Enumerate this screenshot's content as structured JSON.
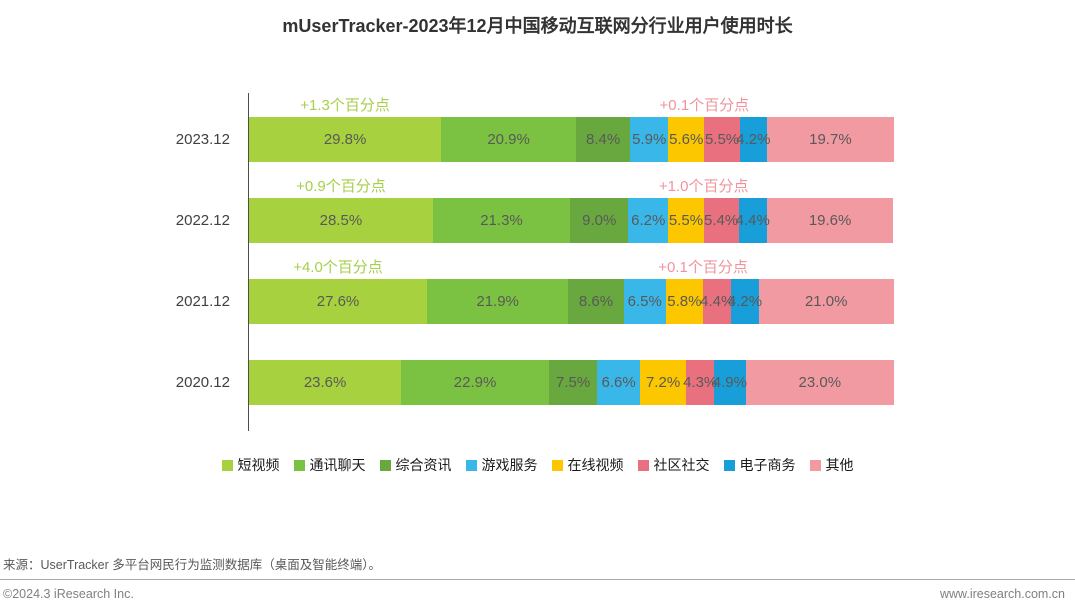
{
  "title": "mUserTracker-2023年12月中国移动互联网分行业用户使用时长",
  "chart_data": {
    "type": "bar",
    "stacked": true,
    "orientation": "horizontal",
    "value_suffix": "%",
    "xlim": [
      0,
      100
    ],
    "legend_position": "bottom",
    "categories": [
      "2023.12",
      "2022.12",
      "2021.12",
      "2020.12"
    ],
    "series": [
      {
        "name": "短视频",
        "color": "#a8d13f",
        "values": [
          29.8,
          28.5,
          27.6,
          23.6
        ]
      },
      {
        "name": "通讯聊天",
        "color": "#7cc242",
        "values": [
          20.9,
          21.3,
          21.9,
          22.9
        ]
      },
      {
        "name": "综合资讯",
        "color": "#69a83f",
        "values": [
          8.4,
          9.0,
          8.6,
          7.5
        ]
      },
      {
        "name": "游戏服务",
        "color": "#3ab7e9",
        "values": [
          5.9,
          6.2,
          6.5,
          6.6
        ]
      },
      {
        "name": "在线视频",
        "color": "#fdc700",
        "values": [
          5.6,
          5.5,
          5.8,
          7.2
        ]
      },
      {
        "name": "社区社交",
        "color": "#e9717f",
        "values": [
          5.5,
          5.4,
          4.4,
          4.3
        ]
      },
      {
        "name": "电子商务",
        "color": "#189ed9",
        "values": [
          4.2,
          4.4,
          4.2,
          4.9
        ]
      },
      {
        "name": "其他",
        "color": "#f29aa2",
        "values": [
          19.7,
          19.6,
          21.0,
          23.0
        ]
      }
    ],
    "annotations": [
      {
        "category": "2023.12",
        "green": "+1.3个百分点",
        "pink": "+0.1个百分点"
      },
      {
        "category": "2022.12",
        "green": "+0.9个百分点",
        "pink": "+1.0个百分点"
      },
      {
        "category": "2021.12",
        "green": "+4.0个百分点",
        "pink": "+0.1个百分点"
      }
    ]
  },
  "colors": {
    "annotation_green": "#a6cf4a",
    "annotation_pink": "#f0939e",
    "bar_label": "#595959",
    "axis_line": "#4d4d4d"
  },
  "footer": {
    "source": "来源：UserTracker 多平台网民行为监测数据库（桌面及智能终端）。",
    "copyright": "©2024.3 iResearch Inc.",
    "website": "www.iresearch.com.cn"
  }
}
